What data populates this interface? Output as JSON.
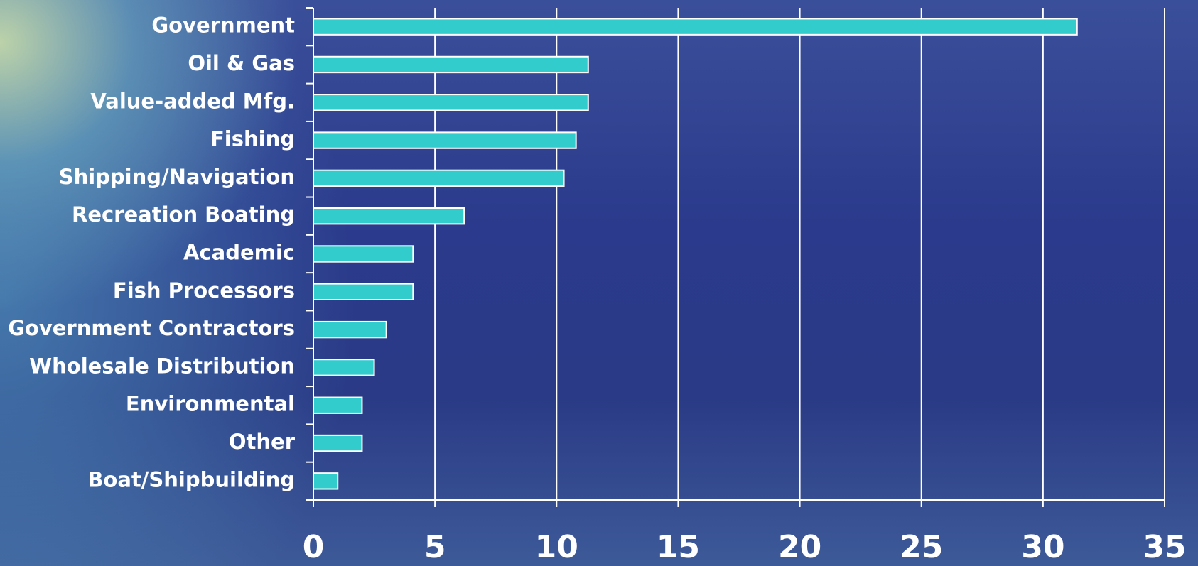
{
  "chart_data": {
    "type": "bar",
    "orientation": "horizontal",
    "categories": [
      "Government",
      "Oil & Gas",
      "Value-added Mfg.",
      "Fishing",
      "Shipping/Navigation",
      "Recreation Boating",
      "Academic",
      "Fish Processors",
      "Government Contractors",
      "Wholesale Distribution",
      "Environmental",
      "Other",
      "Boat/Shipbuilding"
    ],
    "values": [
      31.4,
      11.3,
      11.3,
      10.8,
      10.3,
      6.2,
      4.1,
      4.1,
      3.0,
      2.5,
      2.0,
      2.0,
      1.0
    ],
    "color": "#33cccc",
    "xlim": [
      0,
      35
    ],
    "xticks": [
      0,
      5,
      10,
      15,
      20,
      25,
      30,
      35
    ],
    "grid": true
  }
}
